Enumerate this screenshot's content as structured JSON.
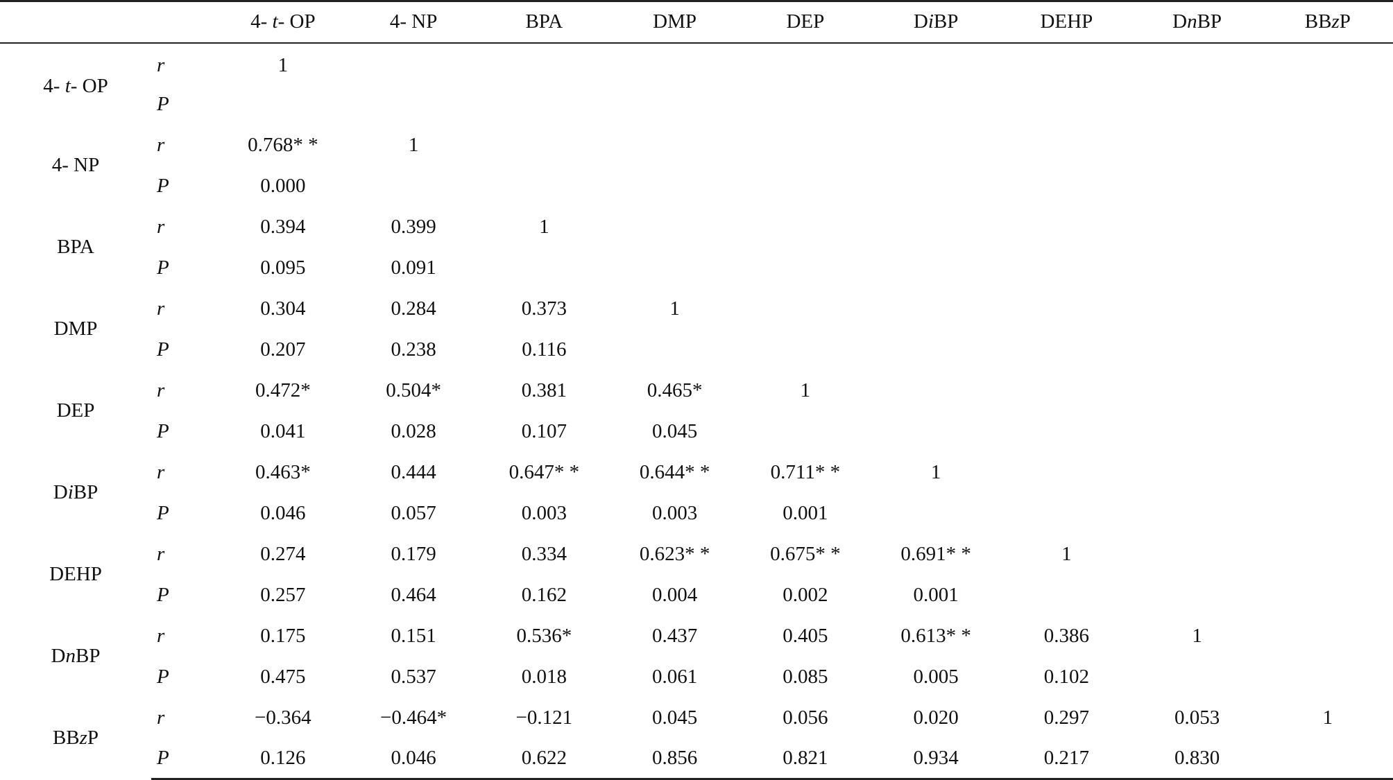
{
  "columns": [
    {
      "pre": "4- ",
      "ital": "t",
      "post": "- OP"
    },
    {
      "pre": "4- NP",
      "ital": "",
      "post": ""
    },
    {
      "pre": "BPA",
      "ital": "",
      "post": ""
    },
    {
      "pre": "DMP",
      "ital": "",
      "post": ""
    },
    {
      "pre": "DEP",
      "ital": "",
      "post": ""
    },
    {
      "pre": "D",
      "ital": "i",
      "post": "BP"
    },
    {
      "pre": "DEHP",
      "ital": "",
      "post": ""
    },
    {
      "pre": "D",
      "ital": "n",
      "post": "BP"
    },
    {
      "pre": "BB",
      "ital": "z",
      "post": "P"
    }
  ],
  "stat_labels": {
    "r": "r",
    "p": "P"
  },
  "rows": [
    {
      "name": {
        "pre": "4- ",
        "ital": "t",
        "post": "- OP"
      },
      "r": [
        "1",
        "",
        "",
        "",
        "",
        "",
        "",
        "",
        ""
      ],
      "p": [
        "",
        "",
        "",
        "",
        "",
        "",
        "",
        "",
        ""
      ]
    },
    {
      "name": {
        "pre": "4- NP",
        "ital": "",
        "post": ""
      },
      "r": [
        "0.768*  *",
        "1",
        "",
        "",
        "",
        "",
        "",
        "",
        ""
      ],
      "p": [
        "0.000",
        "",
        "",
        "",
        "",
        "",
        "",
        "",
        ""
      ]
    },
    {
      "name": {
        "pre": "BPA",
        "ital": "",
        "post": ""
      },
      "r": [
        "0.394",
        "0.399",
        "1",
        "",
        "",
        "",
        "",
        "",
        ""
      ],
      "p": [
        "0.095",
        "0.091",
        "",
        "",
        "",
        "",
        "",
        "",
        ""
      ]
    },
    {
      "name": {
        "pre": "DMP",
        "ital": "",
        "post": ""
      },
      "r": [
        "0.304",
        "0.284",
        "0.373",
        "1",
        "",
        "",
        "",
        "",
        ""
      ],
      "p": [
        "0.207",
        "0.238",
        "0.116",
        "",
        "",
        "",
        "",
        "",
        ""
      ]
    },
    {
      "name": {
        "pre": "DEP",
        "ital": "",
        "post": ""
      },
      "r": [
        "0.472*",
        "0.504*",
        "0.381",
        "0.465*",
        "1",
        "",
        "",
        "",
        ""
      ],
      "p": [
        "0.041",
        "0.028",
        "0.107",
        "0.045",
        "",
        "",
        "",
        "",
        ""
      ]
    },
    {
      "name": {
        "pre": "D",
        "ital": "i",
        "post": "BP"
      },
      "r": [
        "0.463*",
        "0.444",
        "0.647* *",
        "0.644* *",
        "0.711* *",
        "1",
        "",
        "",
        ""
      ],
      "p": [
        "0.046",
        "0.057",
        "0.003",
        "0.003",
        "0.001",
        "",
        "",
        "",
        ""
      ]
    },
    {
      "name": {
        "pre": "DEHP",
        "ital": "",
        "post": ""
      },
      "r": [
        "0.274",
        "0.179",
        "0.334",
        "0.623* *",
        "0.675* *",
        "0.691* *",
        "1",
        "",
        ""
      ],
      "p": [
        "0.257",
        "0.464",
        "0.162",
        "0.004",
        "0.002",
        "0.001",
        "",
        "",
        ""
      ]
    },
    {
      "name": {
        "pre": "D",
        "ital": "n",
        "post": "BP"
      },
      "r": [
        "0.175",
        "0.151",
        "0.536*",
        "0.437",
        "0.405",
        "0.613* *",
        "0.386",
        "1",
        ""
      ],
      "p": [
        "0.475",
        "0.537",
        "0.018",
        "0.061",
        "0.085",
        "0.005",
        "0.102",
        "",
        ""
      ]
    },
    {
      "name": {
        "pre": "BB",
        "ital": "z",
        "post": "P"
      },
      "r": [
        "−0.364",
        "−0.464*",
        "−0.121",
        "0.045",
        "0.056",
        "0.020",
        "0.297",
        "0.053",
        "1"
      ],
      "p": [
        "0.126",
        "0.046",
        "0.622",
        "0.856",
        "0.821",
        "0.934",
        "0.217",
        "0.830",
        ""
      ]
    }
  ]
}
